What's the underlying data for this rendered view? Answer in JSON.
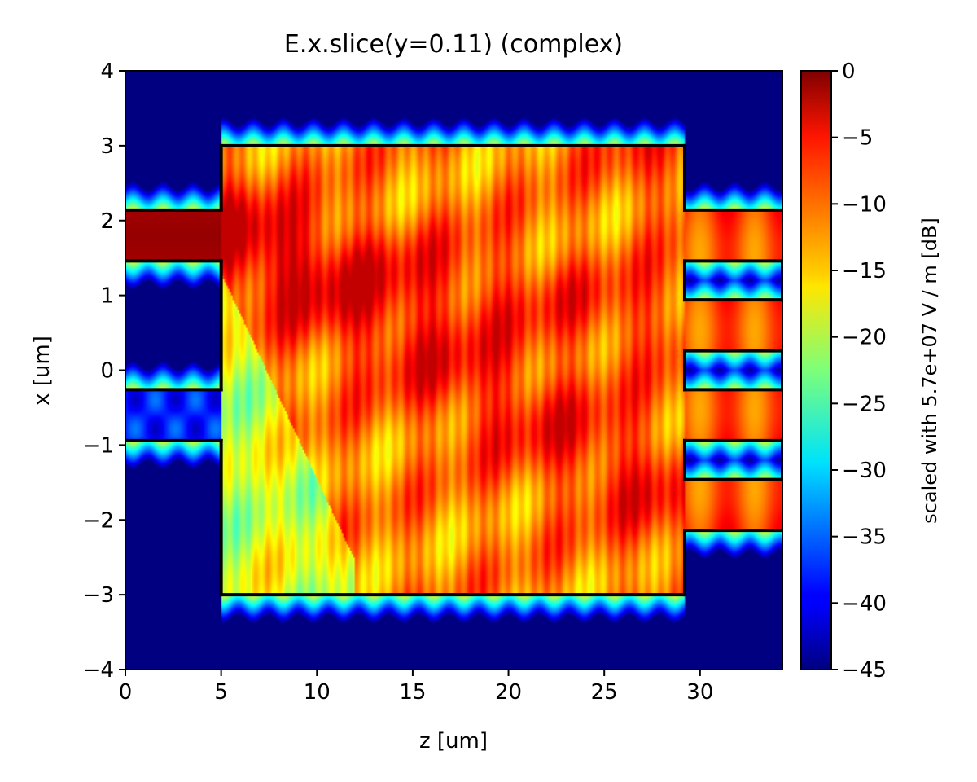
{
  "chart_data": {
    "type": "heatmap",
    "title": "E.x.slice(y=0.11) (complex)",
    "xlabel": "z [um]",
    "ylabel": "x [um]",
    "xlim": [
      0,
      34.3
    ],
    "ylim": [
      -4,
      4
    ],
    "xticks": [
      0,
      5,
      10,
      15,
      20,
      25,
      30
    ],
    "yticks": [
      -4,
      -3,
      -2,
      -1,
      0,
      1,
      2,
      3,
      4
    ],
    "x_tick_labels": [
      "0",
      "5",
      "10",
      "15",
      "20",
      "25",
      "30"
    ],
    "y_tick_labels": [
      "−4",
      "−3",
      "−2",
      "−1",
      "0",
      "1",
      "2",
      "3",
      "4"
    ],
    "colormap": "jet",
    "colorbar": {
      "label": "scaled with 5.7e+07 V / m [dB]",
      "range": [
        -45,
        0
      ],
      "ticks": [
        0,
        -5,
        -10,
        -15,
        -20,
        -25,
        -30,
        -35,
        -40,
        -45
      ],
      "tick_labels": [
        "0",
        "−5",
        "−10",
        "−15",
        "−20",
        "−25",
        "−30",
        "−35",
        "−40",
        "−45"
      ]
    },
    "grid": false,
    "structure_outline": {
      "color": "#000000",
      "input_waveguides_z": [
        0,
        5
      ],
      "input_waveguides_x": [
        [
          1.46,
          2.14
        ],
        [
          -0.94,
          -0.26
        ]
      ],
      "mmi_region": {
        "z": [
          5,
          29.2
        ],
        "x": [
          -3,
          3
        ]
      },
      "output_waveguides_z": [
        29.2,
        34.3
      ],
      "output_waveguides_x": [
        [
          1.46,
          2.14
        ],
        [
          0.26,
          0.94
        ],
        [
          -0.94,
          -0.26
        ],
        [
          -2.14,
          -1.46
        ]
      ]
    }
  }
}
